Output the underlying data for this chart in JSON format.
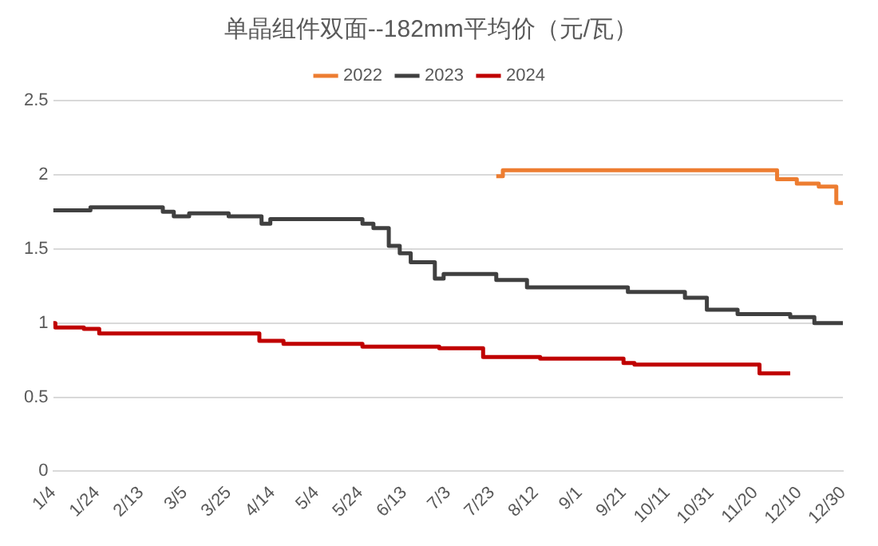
{
  "chart_data": {
    "type": "step",
    "title": "单晶组件双面--182mm平均价（元/瓦）",
    "legend": "top",
    "grid": "y",
    "marker": "none",
    "line_style": "solid",
    "xlim": [
      "--01-04",
      "--12-30"
    ],
    "xticks": [
      {
        "value": "--01-04",
        "label": "1/4"
      },
      {
        "value": "--01-24",
        "label": "1/24"
      },
      {
        "value": "--02-13",
        "label": "2/13"
      },
      {
        "value": "--03-05",
        "label": "3/5"
      },
      {
        "value": "--03-25",
        "label": "3/25"
      },
      {
        "value": "--04-14",
        "label": "4/14"
      },
      {
        "value": "--05-04",
        "label": "5/4"
      },
      {
        "value": "--05-24",
        "label": "5/24"
      },
      {
        "value": "--06-13",
        "label": "6/13"
      },
      {
        "value": "--07-03",
        "label": "7/3"
      },
      {
        "value": "--07-23",
        "label": "7/23"
      },
      {
        "value": "--08-12",
        "label": "8/12"
      },
      {
        "value": "--09-01",
        "label": "9/1"
      },
      {
        "value": "--09-21",
        "label": "9/21"
      },
      {
        "value": "--10-11",
        "label": "10/11"
      },
      {
        "value": "--10-31",
        "label": "10/31"
      },
      {
        "value": "--11-20",
        "label": "11/20"
      },
      {
        "value": "--12-10",
        "label": "12/10"
      },
      {
        "value": "--12-30",
        "label": "12/30"
      }
    ],
    "ylim": [
      0,
      2.5
    ],
    "yticks": [
      0,
      0.5,
      1,
      1.5,
      2,
      2.5
    ],
    "series": [
      {
        "name": "2022",
        "color": "#ed7d31",
        "x": [
          "--07-25",
          "--07-28",
          "--11-30",
          "--12-09",
          "--12-19",
          "--12-27",
          "--12-30"
        ],
        "values": [
          1.99,
          2.03,
          1.97,
          1.94,
          1.92,
          1.81,
          1.81
        ]
      },
      {
        "name": "2023",
        "color": "#404040",
        "x": [
          "--01-04",
          "--01-21",
          "--02-23",
          "--02-28",
          "--03-07",
          "--03-25",
          "--04-09",
          "--04-13",
          "--05-25",
          "--05-30",
          "--06-06",
          "--06-11",
          "--06-16",
          "--06-27",
          "--07-01",
          "--07-25",
          "--08-08",
          "--09-23",
          "--10-19",
          "--10-29",
          "--11-12",
          "--12-06",
          "--12-17",
          "--12-30"
        ],
        "values": [
          1.76,
          1.78,
          1.75,
          1.72,
          1.74,
          1.72,
          1.67,
          1.7,
          1.67,
          1.64,
          1.52,
          1.47,
          1.41,
          1.3,
          1.33,
          1.29,
          1.24,
          1.21,
          1.17,
          1.09,
          1.06,
          1.04,
          1.0,
          1.0
        ]
      },
      {
        "name": "2024",
        "color": "#c00000",
        "x": [
          "--01-04",
          "--01-05",
          "--01-18",
          "--01-25",
          "--04-08",
          "--04-19",
          "--05-25",
          "--06-29",
          "--07-19",
          "--08-14",
          "--09-21",
          "--09-26",
          "--11-22",
          "--12-06"
        ],
        "values": [
          1.0,
          0.97,
          0.96,
          0.93,
          0.88,
          0.86,
          0.84,
          0.83,
          0.77,
          0.76,
          0.73,
          0.72,
          0.66,
          0.66
        ]
      }
    ]
  }
}
